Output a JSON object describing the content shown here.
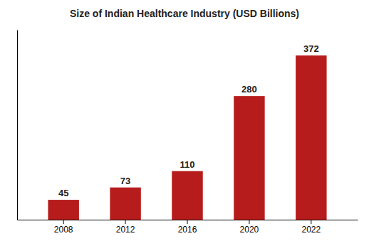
{
  "chart_data": {
    "type": "bar",
    "title": "Size of Indian Healthcare Industry (USD Billions)",
    "categories": [
      "2008",
      "2012",
      "2016",
      "2020",
      "2022"
    ],
    "values": [
      45,
      73,
      110,
      280,
      372
    ],
    "color": "#B71C1C",
    "ylim": [
      0,
      430
    ],
    "grid": false,
    "data_labels": true,
    "tick_labels": "x"
  }
}
